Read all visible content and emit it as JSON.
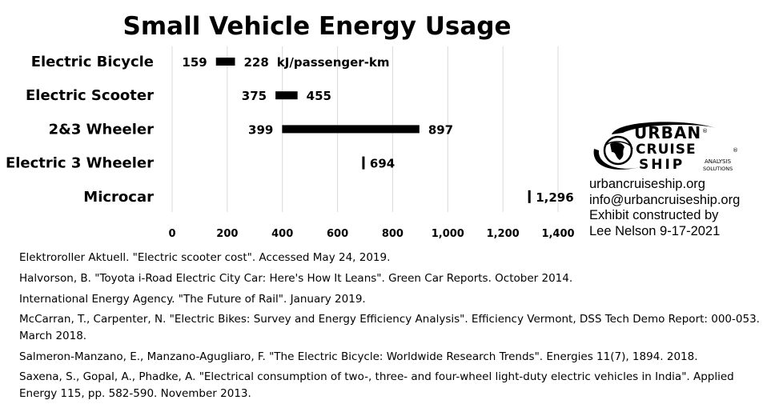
{
  "chart_data": {
    "type": "bar",
    "subtype": "floating-range",
    "title": "Small Vehicle Energy Usage",
    "unit_label": "kJ/passenger-km",
    "categories": [
      "Electric Bicycle",
      "Electric Scooter",
      "2&3 Wheeler",
      "Electric 3 Wheeler",
      "Microcar"
    ],
    "ranges": [
      {
        "category": "Electric Bicycle",
        "low": 159,
        "high": 228,
        "low_label": "159",
        "high_label": "228"
      },
      {
        "category": "Electric Scooter",
        "low": 375,
        "high": 455,
        "low_label": "375",
        "high_label": "455"
      },
      {
        "category": "2&3 Wheeler",
        "low": 399,
        "high": 897,
        "low_label": "399",
        "high_label": "897"
      },
      {
        "category": "Electric 3 Wheeler",
        "low": 694,
        "high": 694,
        "low_label": "",
        "high_label": "694"
      },
      {
        "category": "Microcar",
        "low": 1296,
        "high": 1296,
        "low_label": "",
        "high_label": "1,296"
      }
    ],
    "xlim": [
      0,
      1400
    ],
    "xticks": [
      0,
      200,
      400,
      600,
      800,
      1000,
      1200,
      1400
    ],
    "xtick_labels": [
      "0",
      "200",
      "400",
      "600",
      "800",
      "1,000",
      "1,200",
      "1,400"
    ],
    "grid": true,
    "legend": "none"
  },
  "logo": {
    "line1": "URBAN",
    "line2": "CRUISE",
    "line3": "SHIP",
    "sub1": "ANALYSIS",
    "sub2": "SOLUTIONS",
    "reg": "®"
  },
  "contact": {
    "website": "urbancruiseship.org",
    "email": "info@urbancruiseship.org",
    "credit_line1": "Exhibit constructed by",
    "credit_line2": "Lee Nelson 9-17-2021"
  },
  "references": [
    "Elektroroller Aktuell. \"Electric scooter cost\". Accessed May 24, 2019.",
    "Halvorson, B. \"Toyota i-Road Electric City Car: Here's How It Leans\". Green Car Reports. October 2014.",
    "International Energy Agency. \"The Future of Rail\". January 2019.",
    "McCarran, T., Carpenter, N. \"Electric Bikes: Survey and Energy Efficiency Analysis\". Efficiency Vermont, DSS Tech Demo Report: 000-053. March 2018.",
    "Salmeron-Manzano, E., Manzano-Agugliaro, F. \"The Electric Bicycle: Worldwide Research Trends\". Energies 11(7), 1894. 2018.",
    "Saxena, S., Gopal, A., Phadke, A. \"Electrical consumption of two-, three- and four-wheel light-duty electric vehicles in India\". Applied Energy 115, pp. 582-590. November 2013."
  ]
}
